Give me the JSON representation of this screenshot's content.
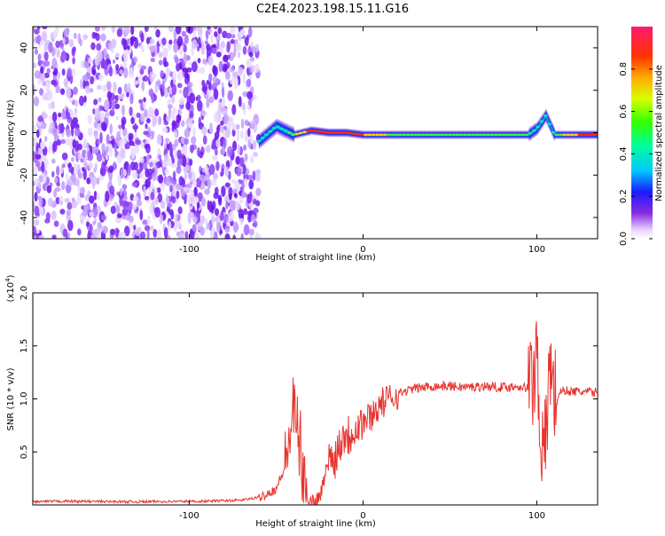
{
  "title": "C2E4.2023.198.15.11.G16",
  "chart_data": [
    {
      "type": "heatmap",
      "xlabel": "Height of straight line (km)",
      "ylabel": "Frequency (Hz)",
      "xlim": [
        -190,
        135
      ],
      "ylim": [
        -50,
        50
      ],
      "x_ticks": [
        -100,
        0,
        100
      ],
      "y_ticks": [
        -40,
        -20,
        0,
        20,
        40
      ],
      "colorbar": {
        "label": "Normalized spectral amplitude",
        "range": [
          0,
          1
        ],
        "ticks": [
          "0.0",
          "0.2",
          "0.4",
          "0.6",
          "0.8"
        ],
        "tick_values": [
          0.0,
          0.2,
          0.4,
          0.6,
          0.8
        ]
      },
      "noise_region_x": [
        -190,
        -60
      ],
      "signal_track": {
        "x": [
          -60,
          -50,
          -40,
          -30,
          -20,
          -10,
          0,
          10,
          20,
          40,
          60,
          80,
          95,
          100,
          105,
          110,
          120,
          135
        ],
        "freq": [
          -4,
          3,
          -1,
          1,
          0,
          0,
          -1,
          -1,
          -1,
          -1,
          -1,
          -1,
          -1,
          2,
          8,
          -1,
          -1,
          -1
        ],
        "amplitude": [
          0.3,
          0.35,
          0.6,
          0.85,
          0.9,
          0.85,
          0.8,
          0.7,
          0.55,
          0.55,
          0.55,
          0.6,
          0.5,
          0.35,
          0.3,
          0.5,
          0.75,
          0.95
        ]
      }
    },
    {
      "type": "line",
      "xlabel": "Height of straight line (km)",
      "ylabel": "SNR (10 * v/v)",
      "y_multiplier": "(x10",
      "y_exponent": "4",
      "y_multiplier_close": ")",
      "xlim": [
        -190,
        135
      ],
      "ylim": [
        0,
        20000
      ],
      "x_ticks": [
        -100,
        0,
        100
      ],
      "y_ticks": [
        5000,
        10000,
        15000,
        20000
      ],
      "y_tick_labels": [
        "0.5",
        "1.0",
        "1.5",
        "2.0"
      ],
      "color": "#e8332e",
      "series": [
        {
          "x": [
            -190,
            -170,
            -150,
            -130,
            -110,
            -90,
            -70,
            -60,
            -50,
            -45,
            -40,
            -38,
            -36,
            -34,
            -32,
            -30,
            -28,
            -25,
            -22,
            -20,
            -18,
            -15,
            -12,
            -10,
            -8,
            -5,
            0,
            5,
            10,
            20,
            30,
            40,
            50,
            60,
            70,
            80,
            90,
            95,
            98,
            100,
            102,
            104,
            106,
            108,
            110,
            115,
            120,
            135
          ],
          "y": [
            300,
            350,
            320,
            300,
            330,
            350,
            450,
            700,
            1500,
            3500,
            9000,
            7000,
            5500,
            1500,
            800,
            400,
            400,
            800,
            2500,
            4500,
            4000,
            5000,
            6500,
            7000,
            6500,
            7500,
            7800,
            8500,
            9500,
            10500,
            11000,
            11200,
            11200,
            11100,
            11200,
            11100,
            11200,
            11000,
            12000,
            15000,
            8000,
            3000,
            9000,
            14000,
            10000,
            10800,
            10700,
            10600
          ]
        }
      ]
    }
  ]
}
